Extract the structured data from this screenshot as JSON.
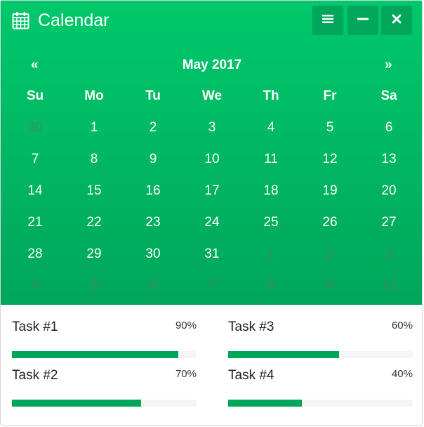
{
  "header": {
    "title": "Calendar",
    "icons": {
      "calendar": "calendar-icon",
      "menu": "bars-icon",
      "minimize": "minus-icon",
      "close": "times-icon"
    }
  },
  "calendar": {
    "prev": "«",
    "next": "»",
    "month_title": "May 2017",
    "weekdays": [
      "Su",
      "Mo",
      "Tu",
      "We",
      "Th",
      "Fr",
      "Sa"
    ],
    "weeks": [
      [
        {
          "d": "30",
          "m": true
        },
        {
          "d": "1"
        },
        {
          "d": "2"
        },
        {
          "d": "3"
        },
        {
          "d": "4"
        },
        {
          "d": "5"
        },
        {
          "d": "6"
        }
      ],
      [
        {
          "d": "7"
        },
        {
          "d": "8"
        },
        {
          "d": "9"
        },
        {
          "d": "10"
        },
        {
          "d": "11"
        },
        {
          "d": "12"
        },
        {
          "d": "13"
        }
      ],
      [
        {
          "d": "14"
        },
        {
          "d": "15"
        },
        {
          "d": "16"
        },
        {
          "d": "17"
        },
        {
          "d": "18"
        },
        {
          "d": "19"
        },
        {
          "d": "20"
        }
      ],
      [
        {
          "d": "21"
        },
        {
          "d": "22"
        },
        {
          "d": "23"
        },
        {
          "d": "24"
        },
        {
          "d": "25"
        },
        {
          "d": "26"
        },
        {
          "d": "27"
        }
      ],
      [
        {
          "d": "28"
        },
        {
          "d": "29"
        },
        {
          "d": "30"
        },
        {
          "d": "31"
        },
        {
          "d": "1",
          "m": true
        },
        {
          "d": "2",
          "m": true
        },
        {
          "d": "3",
          "m": true
        }
      ],
      [
        {
          "d": "4",
          "m": true
        },
        {
          "d": "5",
          "m": true
        },
        {
          "d": "6",
          "m": true
        },
        {
          "d": "7",
          "m": true
        },
        {
          "d": "8",
          "m": true
        },
        {
          "d": "9",
          "m": true
        },
        {
          "d": "10",
          "m": true
        }
      ]
    ]
  },
  "tasks": [
    {
      "label": "Task #1",
      "percent_text": "90%",
      "progress": 0.9
    },
    {
      "label": "Task #2",
      "percent_text": "70%",
      "progress": 0.7
    },
    {
      "label": "Task #3",
      "percent_text": "60%",
      "progress": 0.6
    },
    {
      "label": "Task #4",
      "percent_text": "40%",
      "progress": 0.4
    }
  ],
  "colors": {
    "accent": "#00a65a",
    "gradient_top": "#00c86b",
    "track": "#f5f5f5"
  }
}
